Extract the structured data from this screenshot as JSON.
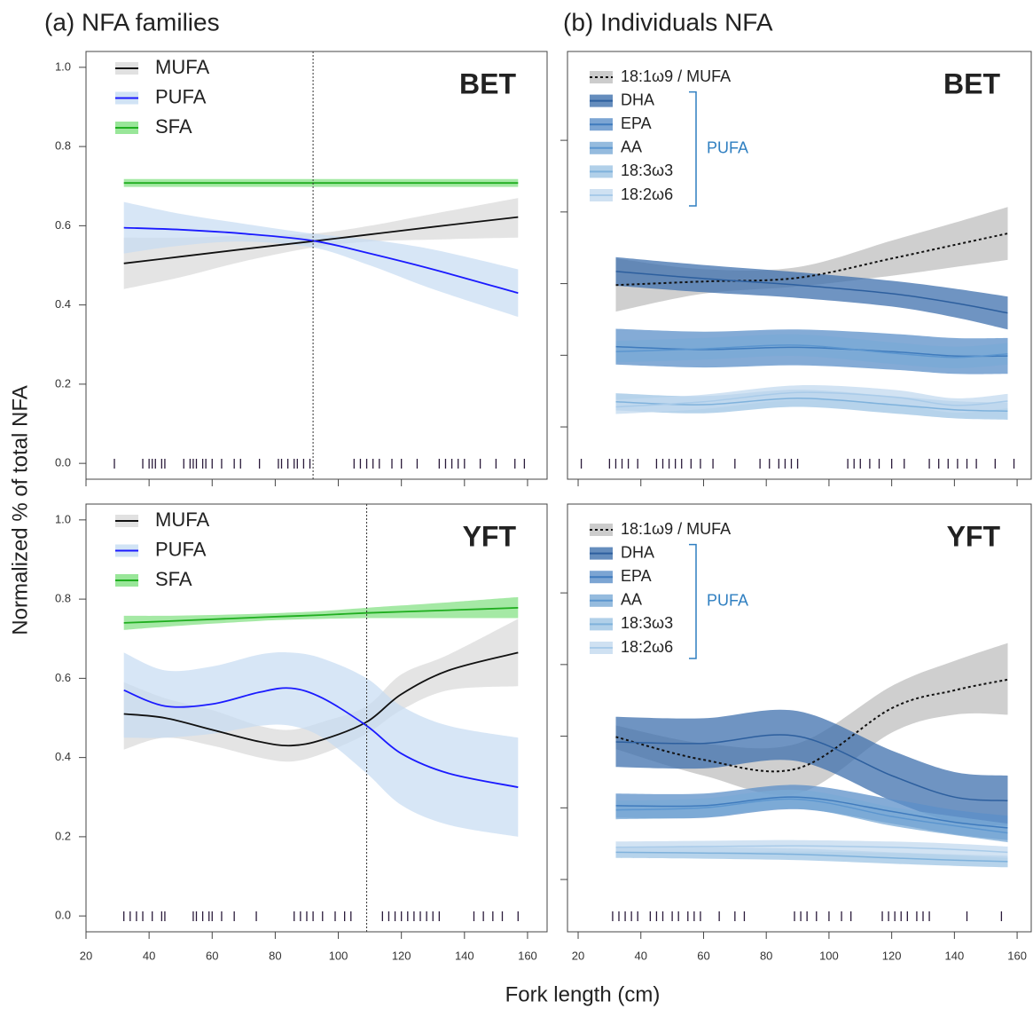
{
  "figure": {
    "titles": [
      "(a) NFA families",
      "(b) Individuals NFA"
    ],
    "ylabel": "Normalized % of total NFA",
    "xlabel": "Fork length (cm)"
  },
  "chart_data": [
    {
      "type": "line",
      "label": "BET",
      "x": [
        32,
        50,
        70,
        92,
        110,
        130,
        157
      ],
      "xlim": [
        20,
        166.2
      ],
      "ylim": [
        -0.04,
        1.04
      ],
      "xticks": [
        20,
        40,
        60,
        80,
        100,
        120,
        140,
        160
      ],
      "xtick_labels": false,
      "yticks": [
        {
          "value": 0,
          "label": "0.0"
        },
        {
          "value": 0.2,
          "label": "0.2"
        },
        {
          "value": 0.4,
          "label": "0.4"
        },
        {
          "value": 0.6,
          "label": "0.6"
        },
        {
          "value": 0.8,
          "label": "0.8"
        },
        {
          "value": 1,
          "label": "1.0"
        }
      ],
      "ytick_labels": true,
      "vline": 92,
      "series": [
        {
          "name": "MUFA",
          "color": "#111111",
          "band_color": "#d9d9d9",
          "values": [
            0.505,
            0.522,
            0.541,
            0.561,
            0.578,
            0.597,
            0.622
          ],
          "lower": [
            0.44,
            0.47,
            0.51,
            0.545,
            0.56,
            0.565,
            0.57
          ],
          "upper": [
            0.57,
            0.57,
            0.575,
            0.58,
            0.6,
            0.63,
            0.67
          ]
        },
        {
          "name": "PUFA",
          "color": "#1a1aff",
          "band_color": "#c6dcf2",
          "values": [
            0.595,
            0.59,
            0.58,
            0.562,
            0.53,
            0.49,
            0.43
          ],
          "lower": [
            0.53,
            0.55,
            0.56,
            0.545,
            0.5,
            0.44,
            0.37
          ],
          "upper": [
            0.66,
            0.63,
            0.605,
            0.58,
            0.565,
            0.54,
            0.49
          ]
        },
        {
          "name": "SFA",
          "color": "#1fae1f",
          "band_color": "#7fe07f",
          "values": [
            0.708,
            0.708,
            0.708,
            0.708,
            0.708,
            0.708,
            0.708
          ],
          "lower": [
            0.698,
            0.698,
            0.698,
            0.698,
            0.698,
            0.698,
            0.698
          ],
          "upper": [
            0.718,
            0.718,
            0.718,
            0.718,
            0.718,
            0.718,
            0.718
          ]
        }
      ],
      "rug": [
        29,
        38,
        40,
        41,
        42,
        44,
        45,
        51,
        53,
        54,
        55,
        57,
        58,
        60,
        63,
        67,
        69,
        75,
        81,
        82,
        84,
        86,
        87,
        89,
        91,
        105,
        107,
        109,
        111,
        113,
        117,
        120,
        125,
        132,
        134,
        136,
        138,
        140,
        145,
        150,
        156,
        159
      ]
    },
    {
      "type": "line",
      "label": "BET",
      "x": [
        32,
        60,
        90,
        120,
        140,
        157
      ],
      "xlim": [
        16.6,
        164.5
      ],
      "ylim": [
        0.027,
        0.624
      ],
      "xticks": [
        20,
        40,
        60,
        80,
        100,
        120,
        140,
        160
      ],
      "xtick_labels": false,
      "yticks": [
        0.1,
        0.2,
        0.3,
        0.4,
        0.5
      ],
      "ytick_labels": false,
      "bracket_label": "PUFA",
      "bracket_color": "#2f7fc1",
      "series": [
        {
          "name": "18:1ω9 / MUFA",
          "color": "#111111",
          "band_color": "#bfbfbf",
          "dash": true,
          "values": [
            0.298,
            0.303,
            0.308,
            0.335,
            0.354,
            0.37
          ],
          "lower": [
            0.261,
            0.286,
            0.296,
            0.311,
            0.323,
            0.333
          ],
          "upper": [
            0.335,
            0.32,
            0.323,
            0.36,
            0.385,
            0.407
          ]
        },
        {
          "name": "DHA",
          "color": "#2d5f9e",
          "band_color": "#3f70ad",
          "bracket": true,
          "values": [
            0.317,
            0.307,
            0.298,
            0.286,
            0.273,
            0.259
          ],
          "lower": [
            0.297,
            0.288,
            0.28,
            0.268,
            0.253,
            0.236
          ],
          "upper": [
            0.337,
            0.326,
            0.316,
            0.304,
            0.293,
            0.282
          ]
        },
        {
          "name": "EPA",
          "color": "#3f7bbd",
          "band_color": "#5b8fc8",
          "bracket": true,
          "values": [
            0.212,
            0.208,
            0.211,
            0.205,
            0.199,
            0.199
          ],
          "lower": [
            0.187,
            0.183,
            0.186,
            0.18,
            0.174,
            0.174
          ],
          "upper": [
            0.237,
            0.233,
            0.236,
            0.23,
            0.224,
            0.224
          ]
        },
        {
          "name": "AA",
          "color": "#5c96cf",
          "band_color": "#7aaad6",
          "bracket": true,
          "values": [
            0.205,
            0.209,
            0.214,
            0.203,
            0.197,
            0.202
          ],
          "lower": [
            0.19,
            0.194,
            0.199,
            0.188,
            0.182,
            0.187
          ],
          "upper": [
            0.22,
            0.224,
            0.229,
            0.218,
            0.212,
            0.217
          ]
        },
        {
          "name": "18:3ω3",
          "color": "#7fb2dc",
          "band_color": "#9ec4e4",
          "bracket": true,
          "values": [
            0.135,
            0.131,
            0.14,
            0.131,
            0.124,
            0.122
          ],
          "lower": [
            0.123,
            0.119,
            0.128,
            0.119,
            0.112,
            0.11
          ],
          "upper": [
            0.147,
            0.143,
            0.152,
            0.143,
            0.136,
            0.134
          ]
        },
        {
          "name": "18:2ω6",
          "color": "#a9cbe9",
          "band_color": "#c3daef",
          "bracket": true,
          "values": [
            0.128,
            0.135,
            0.148,
            0.142,
            0.13,
            0.136
          ],
          "lower": [
            0.118,
            0.125,
            0.138,
            0.132,
            0.12,
            0.126
          ],
          "upper": [
            0.138,
            0.145,
            0.158,
            0.152,
            0.14,
            0.146
          ]
        }
      ],
      "rug": [
        21,
        30,
        32,
        34,
        36,
        39,
        45,
        47,
        49,
        51,
        53,
        56,
        59,
        63,
        70,
        78,
        81,
        84,
        86,
        88,
        90,
        106,
        108,
        110,
        113,
        116,
        120,
        124,
        132,
        135,
        138,
        141,
        144,
        147,
        153,
        159
      ]
    },
    {
      "type": "line",
      "label": "YFT",
      "x": [
        32,
        45,
        60,
        75,
        85,
        95,
        109,
        120,
        135,
        157
      ],
      "xlim": [
        20,
        166.2
      ],
      "ylim": [
        -0.04,
        1.04
      ],
      "xticks": [
        20,
        40,
        60,
        80,
        100,
        120,
        140,
        160
      ],
      "xtick_labels": true,
      "yticks": [
        {
          "value": 0,
          "label": "0.0"
        },
        {
          "value": 0.2,
          "label": "0.2"
        },
        {
          "value": 0.4,
          "label": "0.4"
        },
        {
          "value": 0.6,
          "label": "0.6"
        },
        {
          "value": 0.8,
          "label": "0.8"
        },
        {
          "value": 1,
          "label": "1.0"
        }
      ],
      "ytick_labels": true,
      "vline": 109,
      "series": [
        {
          "name": "MUFA",
          "color": "#111111",
          "band_color": "#d9d9d9",
          "values": [
            0.51,
            0.5,
            0.47,
            0.44,
            0.43,
            0.445,
            0.49,
            0.56,
            0.62,
            0.665
          ],
          "lower": [
            0.42,
            0.45,
            0.43,
            0.4,
            0.39,
            0.41,
            0.46,
            0.52,
            0.57,
            0.58
          ],
          "upper": [
            0.59,
            0.55,
            0.52,
            0.48,
            0.47,
            0.49,
            0.53,
            0.61,
            0.66,
            0.75
          ]
        },
        {
          "name": "PUFA",
          "color": "#1a1aff",
          "band_color": "#c6dcf2",
          "values": [
            0.57,
            0.53,
            0.535,
            0.565,
            0.575,
            0.55,
            0.48,
            0.41,
            0.36,
            0.325
          ],
          "lower": [
            0.45,
            0.45,
            0.46,
            0.48,
            0.48,
            0.45,
            0.36,
            0.28,
            0.23,
            0.2
          ],
          "upper": [
            0.665,
            0.62,
            0.63,
            0.66,
            0.665,
            0.65,
            0.6,
            0.53,
            0.48,
            0.45
          ]
        },
        {
          "name": "SFA",
          "color": "#1fae1f",
          "band_color": "#7fe07f",
          "values": [
            0.74,
            0.744,
            0.749,
            0.754,
            0.757,
            0.76,
            0.765,
            0.768,
            0.772,
            0.778
          ],
          "lower": [
            0.722,
            0.73,
            0.738,
            0.745,
            0.748,
            0.75,
            0.752,
            0.752,
            0.752,
            0.752
          ],
          "upper": [
            0.758,
            0.758,
            0.76,
            0.763,
            0.766,
            0.77,
            0.778,
            0.784,
            0.792,
            0.805
          ]
        }
      ],
      "rug": [
        32,
        34,
        36,
        38,
        41,
        44,
        45,
        54,
        55,
        57,
        59,
        60,
        63,
        67,
        74,
        86,
        88,
        90,
        92,
        95,
        99,
        102,
        104,
        114,
        116,
        118,
        120,
        122,
        124,
        126,
        128,
        130,
        132,
        143,
        146,
        149,
        152,
        157
      ]
    },
    {
      "type": "line",
      "label": "YFT",
      "x": [
        32,
        60,
        90,
        120,
        140,
        157
      ],
      "xlim": [
        16.6,
        164.5
      ],
      "ylim": [
        0.027,
        0.624
      ],
      "xticks": [
        20,
        40,
        60,
        80,
        100,
        120,
        140,
        160
      ],
      "xtick_labels": true,
      "yticks": [
        0.1,
        0.2,
        0.3,
        0.4,
        0.5
      ],
      "ytick_labels": false,
      "bracket_label": "PUFA",
      "bracket_color": "#2f7fc1",
      "series": [
        {
          "name": "18:1ω9 / MUFA",
          "color": "#111111",
          "band_color": "#bfbfbf",
          "dash": true,
          "values": [
            0.299,
            0.267,
            0.255,
            0.339,
            0.364,
            0.379
          ],
          "lower": [
            0.282,
            0.245,
            0.22,
            0.305,
            0.33,
            0.33
          ],
          "upper": [
            0.315,
            0.29,
            0.29,
            0.37,
            0.405,
            0.43
          ]
        },
        {
          "name": "DHA",
          "color": "#2d5f9e",
          "band_color": "#3f70ad",
          "bracket": true,
          "values": [
            0.292,
            0.29,
            0.3,
            0.245,
            0.215,
            0.21
          ],
          "lower": [
            0.257,
            0.255,
            0.265,
            0.21,
            0.18,
            0.175
          ],
          "upper": [
            0.327,
            0.325,
            0.335,
            0.28,
            0.25,
            0.245
          ]
        },
        {
          "name": "EPA",
          "color": "#3f7bbd",
          "band_color": "#5b8fc8",
          "bracket": true,
          "values": [
            0.203,
            0.203,
            0.215,
            0.195,
            0.18,
            0.172
          ],
          "lower": [
            0.186,
            0.186,
            0.198,
            0.178,
            0.163,
            0.155
          ],
          "upper": [
            0.22,
            0.22,
            0.232,
            0.212,
            0.197,
            0.189
          ]
        },
        {
          "name": "AA",
          "color": "#5c96cf",
          "band_color": "#7aaad6",
          "bracket": true,
          "values": [
            0.197,
            0.2,
            0.212,
            0.188,
            0.175,
            0.165
          ],
          "lower": [
            0.184,
            0.187,
            0.199,
            0.175,
            0.162,
            0.152
          ],
          "upper": [
            0.21,
            0.213,
            0.225,
            0.201,
            0.188,
            0.178
          ]
        },
        {
          "name": "18:3ω3",
          "color": "#7fb2dc",
          "band_color": "#9ec4e4",
          "bracket": true,
          "values": [
            0.138,
            0.137,
            0.135,
            0.13,
            0.127,
            0.125
          ],
          "lower": [
            0.13,
            0.129,
            0.127,
            0.122,
            0.119,
            0.117
          ],
          "upper": [
            0.146,
            0.145,
            0.143,
            0.138,
            0.135,
            0.133
          ]
        },
        {
          "name": "18:2ω6",
          "color": "#a9cbe9",
          "band_color": "#c3daef",
          "bracket": true,
          "values": [
            0.145,
            0.146,
            0.147,
            0.145,
            0.142,
            0.138
          ],
          "lower": [
            0.137,
            0.138,
            0.139,
            0.137,
            0.134,
            0.13
          ],
          "upper": [
            0.153,
            0.154,
            0.155,
            0.153,
            0.15,
            0.146
          ]
        }
      ],
      "rug": [
        31,
        33,
        35,
        37,
        39,
        43,
        45,
        47,
        50,
        52,
        55,
        57,
        59,
        65,
        70,
        73,
        89,
        91,
        93,
        96,
        100,
        104,
        107,
        117,
        119,
        121,
        123,
        125,
        128,
        130,
        132,
        144,
        155
      ]
    }
  ]
}
